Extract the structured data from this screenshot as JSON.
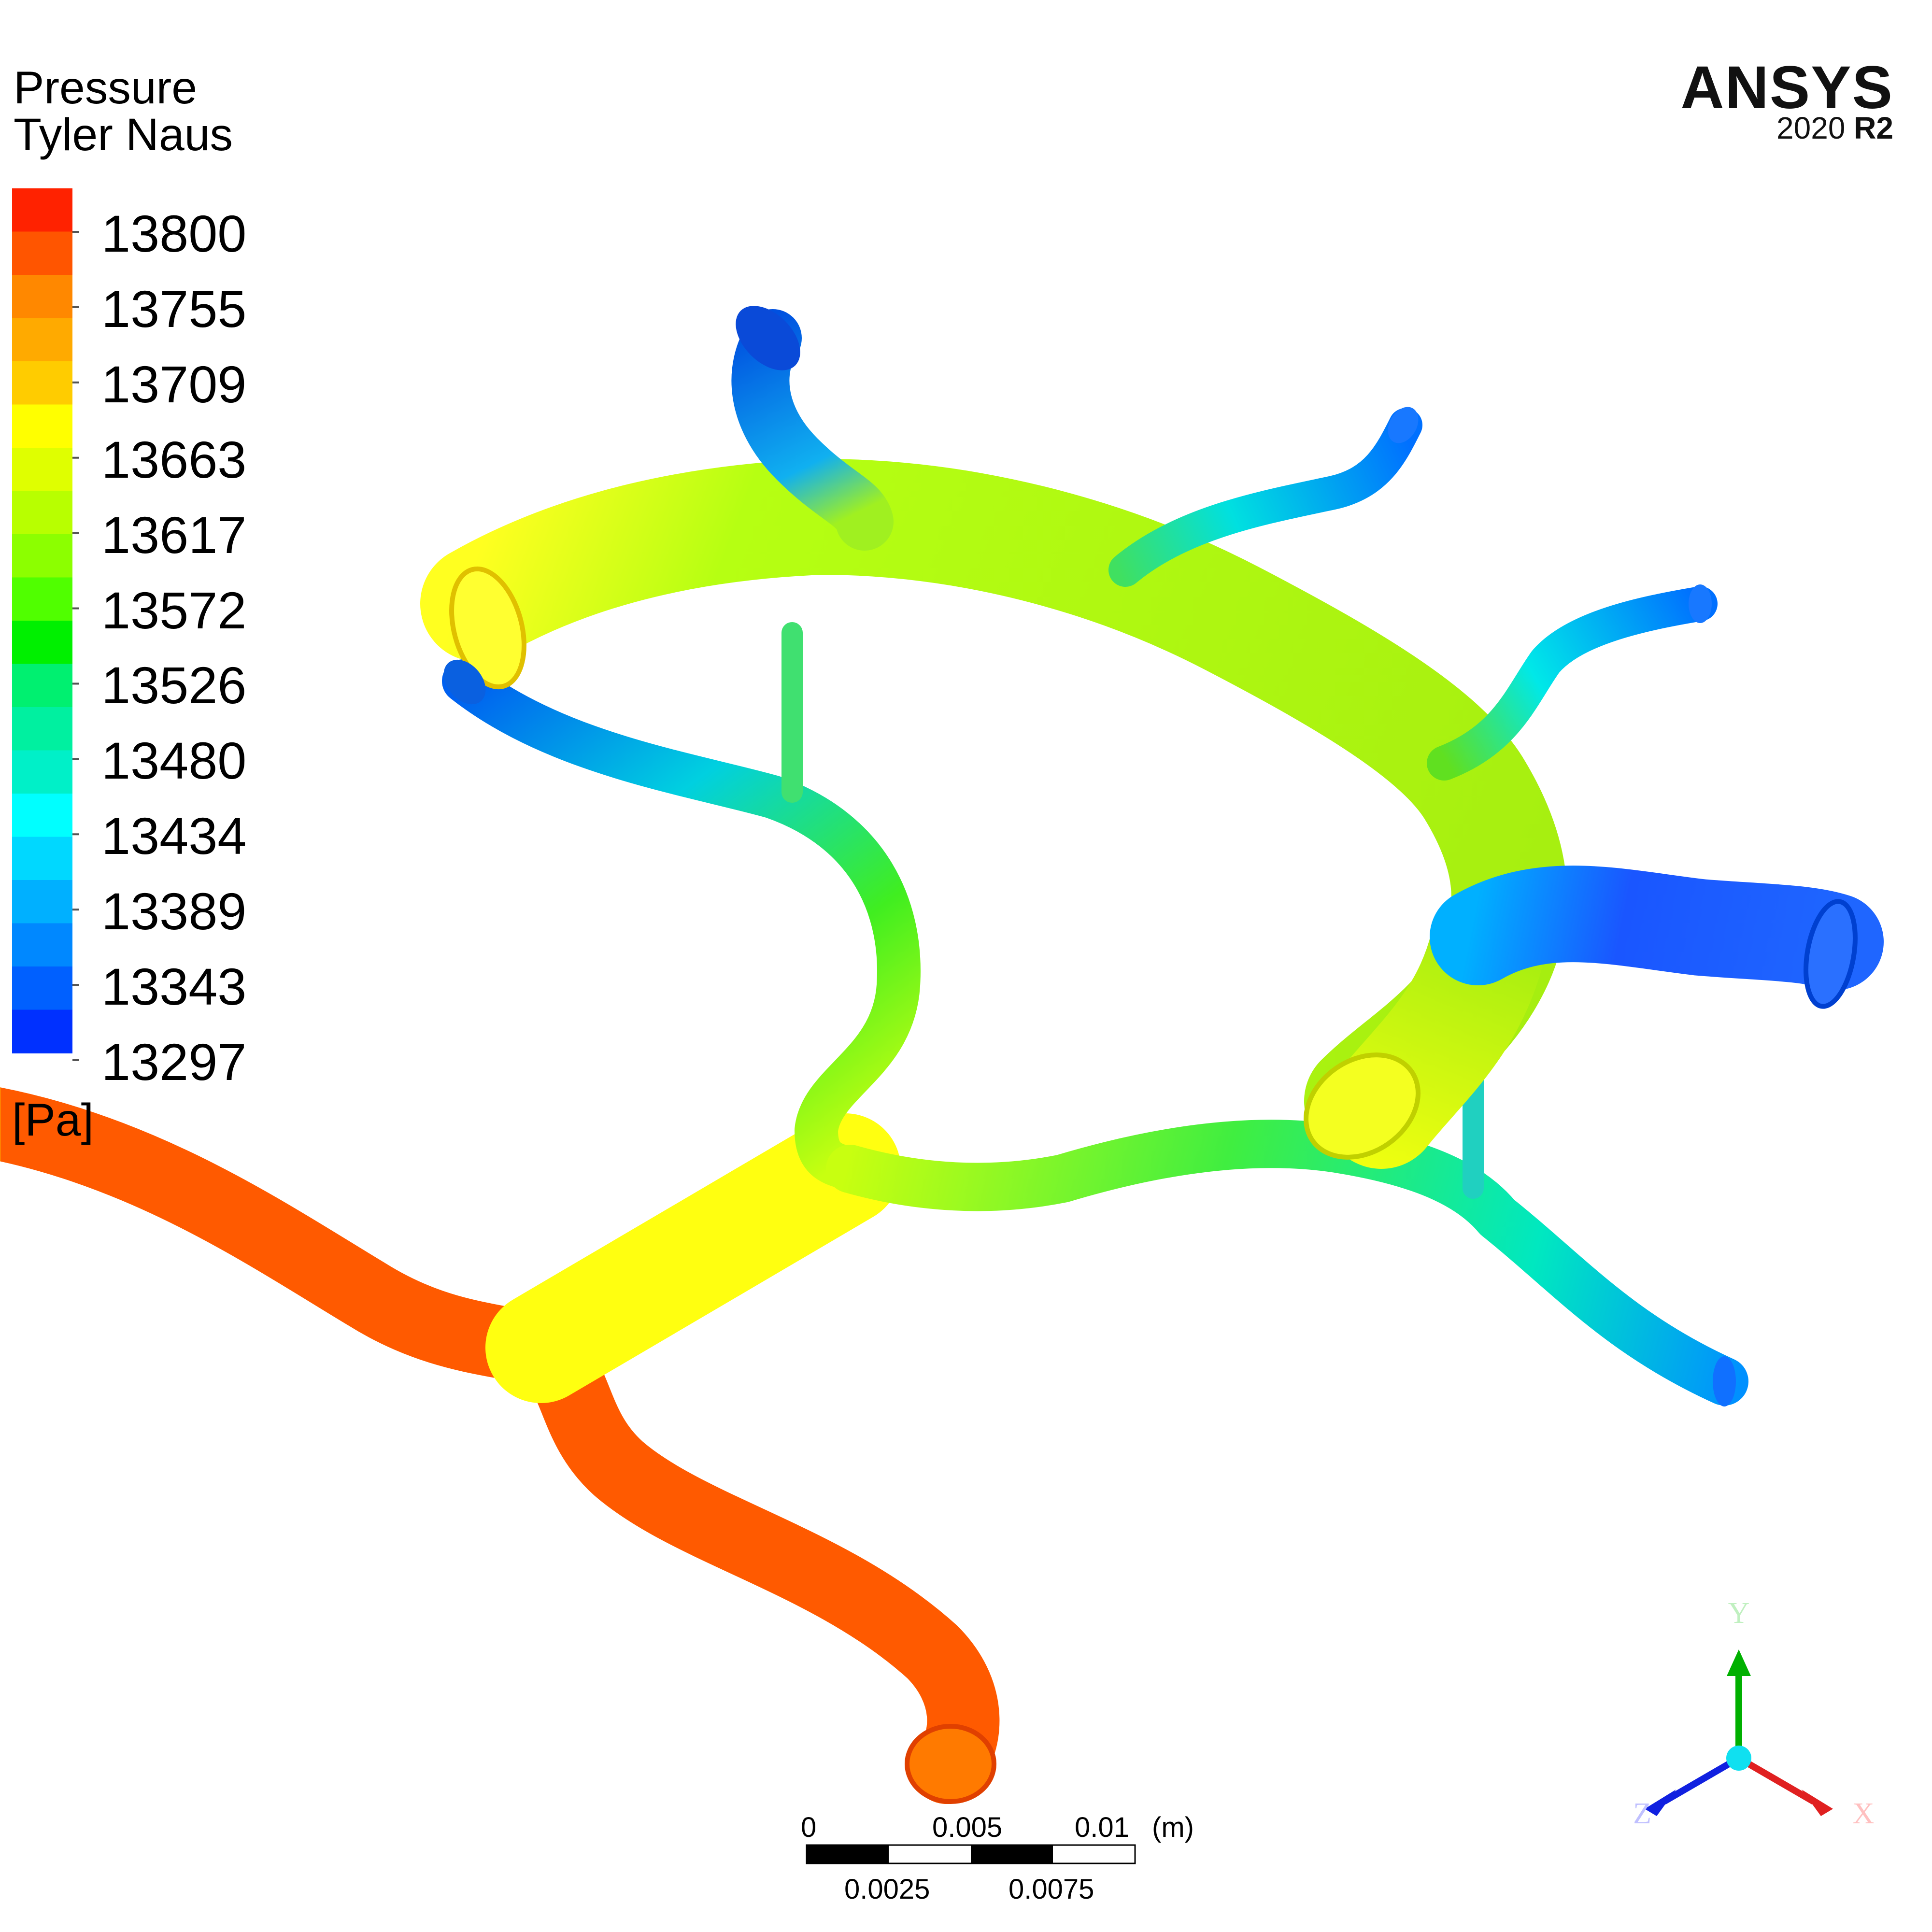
{
  "legend": {
    "variable": "Pressure",
    "author": "Tyler Naus",
    "unit": "[Pa]",
    "values": [
      "13800",
      "13755",
      "13709",
      "13663",
      "13617",
      "13572",
      "13526",
      "13480",
      "13434",
      "13389",
      "13343",
      "13297"
    ],
    "colors": [
      "#ff2200",
      "#ff5500",
      "#ff8800",
      "#ffaa00",
      "#ffcc00",
      "#ffff00",
      "#dfff00",
      "#b8ff00",
      "#8cff00",
      "#50ff00",
      "#00f000",
      "#00f070",
      "#00f0a0",
      "#00f0c8",
      "#00ffff",
      "#00d8ff",
      "#00b0ff",
      "#0088ff",
      "#0060ff",
      "#0030ff"
    ]
  },
  "brand": {
    "name": "ANSYS",
    "version": "2020",
    "release": "R2"
  },
  "scale_bar": {
    "top_labels": [
      "0",
      "0.005",
      "0.01",
      "(m)"
    ],
    "bottom_labels": [
      "0.0025",
      "0.0075"
    ]
  },
  "triad": {
    "y": "Y",
    "x": "X",
    "z": "Z"
  },
  "colors": {
    "inlet": "#ff6a00",
    "upper_ring": "#8ee61a",
    "outlet": "#1f6fff",
    "background": "#ffffff"
  }
}
